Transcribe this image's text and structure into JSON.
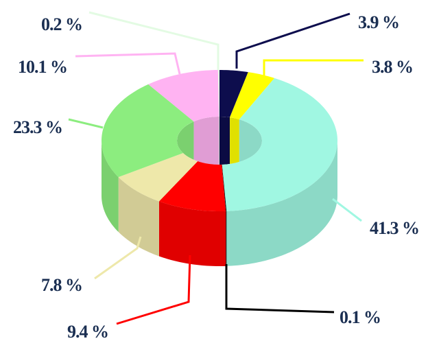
{
  "chart_data": {
    "type": "donut",
    "values": [
      3.9,
      3.8,
      41.3,
      0.1,
      9.4,
      7.8,
      23.3,
      10.1,
      0.2
    ],
    "value_labels": [
      "3.9 %",
      "3.8 %",
      "41.3 %",
      "0.1 %",
      "9.4 %",
      "7.8 %",
      "23.3 %",
      "10.1 %",
      "0.2 %"
    ],
    "colors": [
      "#0d0d4d",
      "#ffff00",
      "#a0f7e2",
      "#000000",
      "#ff0000",
      "#eee8aa",
      "#8ced7f",
      "#ffb3f2",
      "#e3fbe3"
    ]
  }
}
